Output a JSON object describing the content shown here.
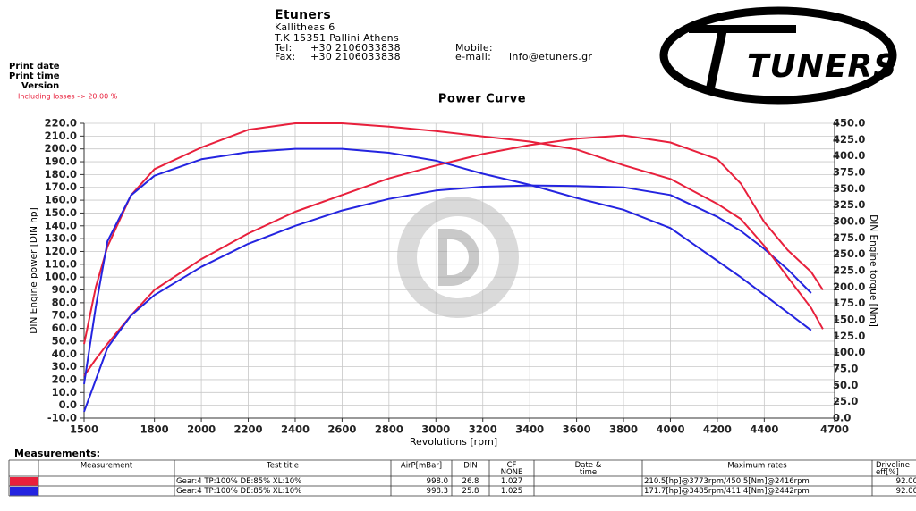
{
  "header": {
    "company": "Etuners",
    "address1": "Kallitheas 6",
    "address2": "T.K 15351 Pallini Athens",
    "tel_label": "Tel:",
    "tel": "+30 2106033838",
    "fax_label": "Fax:",
    "fax": "+30 2106033838",
    "mobile_label": "Mobile:",
    "email_label": "e-mail:",
    "email": "info@etuners.gr",
    "logo_text": "TUNERS"
  },
  "print_info": {
    "print_date": "Print date",
    "print_time": "Print time",
    "version": "Version",
    "losses": "Including losses -> 20.00 %"
  },
  "chart_data": {
    "type": "line",
    "title": "Power Curve",
    "x_label": "Revolutions [rpm]",
    "y_label": "DIN Engine power [DIN hp]",
    "y2_label": "DIN Engine torque [Nm]",
    "xlim": [
      1500,
      4700
    ],
    "xticks": [
      1500,
      1800,
      2000,
      2200,
      2400,
      2600,
      2800,
      3000,
      3200,
      3400,
      3600,
      3800,
      4000,
      4200,
      4400,
      4700
    ],
    "ylim": [
      -10,
      220
    ],
    "yticks": [
      {
        "value": -10,
        "label": "-10.0"
      },
      {
        "value": 0,
        "label": "0.0"
      },
      {
        "value": 10,
        "label": "10.0"
      },
      {
        "value": 20,
        "label": "20.0"
      },
      {
        "value": 30,
        "label": "30.0"
      },
      {
        "value": 40,
        "label": "40.0"
      },
      {
        "value": 50,
        "label": "50.0"
      },
      {
        "value": 60,
        "label": "60.0"
      },
      {
        "value": 70,
        "label": "70.0"
      },
      {
        "value": 80,
        "label": "80.0"
      },
      {
        "value": 90,
        "label": "90.0"
      },
      {
        "value": 100,
        "label": "100.0"
      },
      {
        "value": 110,
        "label": "110.0"
      },
      {
        "value": 120,
        "label": "120.0"
      },
      {
        "value": 130,
        "label": "130.0"
      },
      {
        "value": 140,
        "label": "140.0"
      },
      {
        "value": 150,
        "label": "150.0"
      },
      {
        "value": 160,
        "label": "160.0"
      },
      {
        "value": 170,
        "label": "170.0"
      },
      {
        "value": 180,
        "label": "180.0"
      },
      {
        "value": 190,
        "label": "190.0"
      },
      {
        "value": 200,
        "label": "200.0"
      },
      {
        "value": 210,
        "label": "210.0"
      },
      {
        "value": 220,
        "label": "220.0"
      }
    ],
    "y2lim": [
      0,
      450
    ],
    "y2ticks": [
      {
        "value": 0,
        "label": "0.0"
      },
      {
        "value": 25,
        "label": "25.0"
      },
      {
        "value": 50,
        "label": "50.0"
      },
      {
        "value": 75,
        "label": "75.0"
      },
      {
        "value": 100,
        "label": "100.0"
      },
      {
        "value": 125,
        "label": "125.0"
      },
      {
        "value": 150,
        "label": "150.0"
      },
      {
        "value": 175,
        "label": "175.0"
      },
      {
        "value": 200,
        "label": "200.0"
      },
      {
        "value": 225,
        "label": "225.0"
      },
      {
        "value": 250,
        "label": "250.0"
      },
      {
        "value": 275,
        "label": "275.0"
      },
      {
        "value": 300,
        "label": "300.0"
      },
      {
        "value": 325,
        "label": "325.0"
      },
      {
        "value": 350,
        "label": "350.0"
      },
      {
        "value": 375,
        "label": "375.0"
      },
      {
        "value": 400,
        "label": "400.0"
      },
      {
        "value": 425,
        "label": "425.0"
      },
      {
        "value": 450,
        "label": "450.0"
      }
    ],
    "grid": true,
    "x": [
      1500,
      1550,
      1600,
      1700,
      1800,
      2000,
      2200,
      2400,
      2600,
      2800,
      3000,
      3200,
      3400,
      3600,
      3800,
      4000,
      4200,
      4300,
      4400,
      4500,
      4600,
      4650
    ],
    "series": [
      {
        "color": "#e8203c",
        "axis": "y",
        "values": [
          23,
          36,
          48,
          70,
          90,
          114,
          134,
          151,
          164,
          177,
          187,
          196,
          203,
          208,
          210.5,
          205,
          192,
          173,
          143,
          121,
          104,
          90
        ]
      },
      {
        "color": "#2424e0",
        "axis": "y",
        "values": [
          -5,
          20,
          45,
          70,
          86,
          108,
          126,
          140,
          152,
          161,
          167.5,
          170.5,
          171.5,
          171,
          170,
          164,
          147,
          136,
          122,
          106,
          87.6,
          null
        ]
      },
      {
        "color": "#e8203c",
        "axis": "y2",
        "values": [
          113,
          200,
          262,
          340,
          380,
          413,
          440,
          450,
          450,
          445,
          438,
          430,
          422,
          410,
          386,
          365,
          327,
          304,
          263,
          215,
          168,
          136
        ]
      },
      {
        "color": "#2424e0",
        "axis": "y2",
        "values": [
          52,
          170,
          270,
          340,
          370,
          395,
          406,
          411,
          411,
          405,
          393,
          373,
          356,
          336,
          318,
          290,
          240,
          215,
          188,
          161,
          134,
          null
        ]
      }
    ]
  },
  "table": {
    "heading": "Measurements:",
    "columns": [
      "Measurement",
      "Test title",
      "AirP[mBar]",
      "DIN",
      "CF NONE",
      "Date & time",
      "Maximum rates",
      "Driveline eff[%]"
    ],
    "rows": [
      {
        "color": "#e8203c",
        "test_title": "Gear:4 TP:100% DE:85% XL:10%",
        "airp": "998.0",
        "din": "26.8",
        "cf": "1.027",
        "max_rates": "210.5[hp]@3773rpm/450.5[Nm]@2416rpm",
        "driveline": "92.00"
      },
      {
        "color": "#2424e0",
        "test_title": "Gear:4 TP:100% DE:85% XL:10%",
        "airp": "998.3",
        "din": "25.8",
        "cf": "1.025",
        "max_rates": "171.7[hp]@3485rpm/411.4[Nm]@2442rpm",
        "driveline": "92.00"
      }
    ]
  }
}
